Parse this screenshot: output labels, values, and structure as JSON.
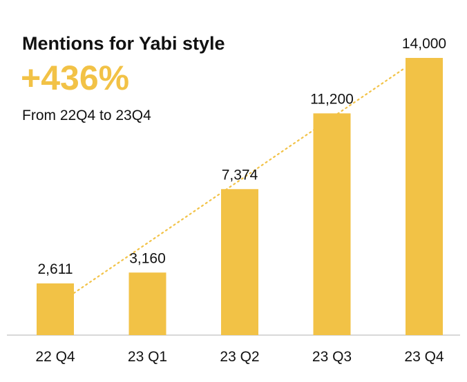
{
  "colors": {
    "bar": "#F2C246",
    "trend": "#F2C246",
    "accent": "#F2C246",
    "text": "#111111",
    "axis": "#CCCCCC"
  },
  "header": {
    "title": "Mentions for Yabi style",
    "big_stat": "+436%",
    "subtitle": "From 22Q4 to 23Q4"
  },
  "chart_data": {
    "type": "bar",
    "title": "Mentions for Yabi style",
    "categories": [
      "22 Q4",
      "23 Q1",
      "23 Q2",
      "23 Q3",
      "23 Q4"
    ],
    "values": [
      2611,
      3160,
      7374,
      11200,
      14000
    ],
    "value_labels": [
      "2,611",
      "3,160",
      "7,374",
      "11,200",
      "14,000"
    ],
    "xlabel": "",
    "ylabel": "",
    "ylim": [
      0,
      15000
    ],
    "grid": false,
    "legend": "none",
    "trendline": {
      "style": "dotted",
      "from": "22 Q4",
      "to": "23 Q4"
    }
  }
}
